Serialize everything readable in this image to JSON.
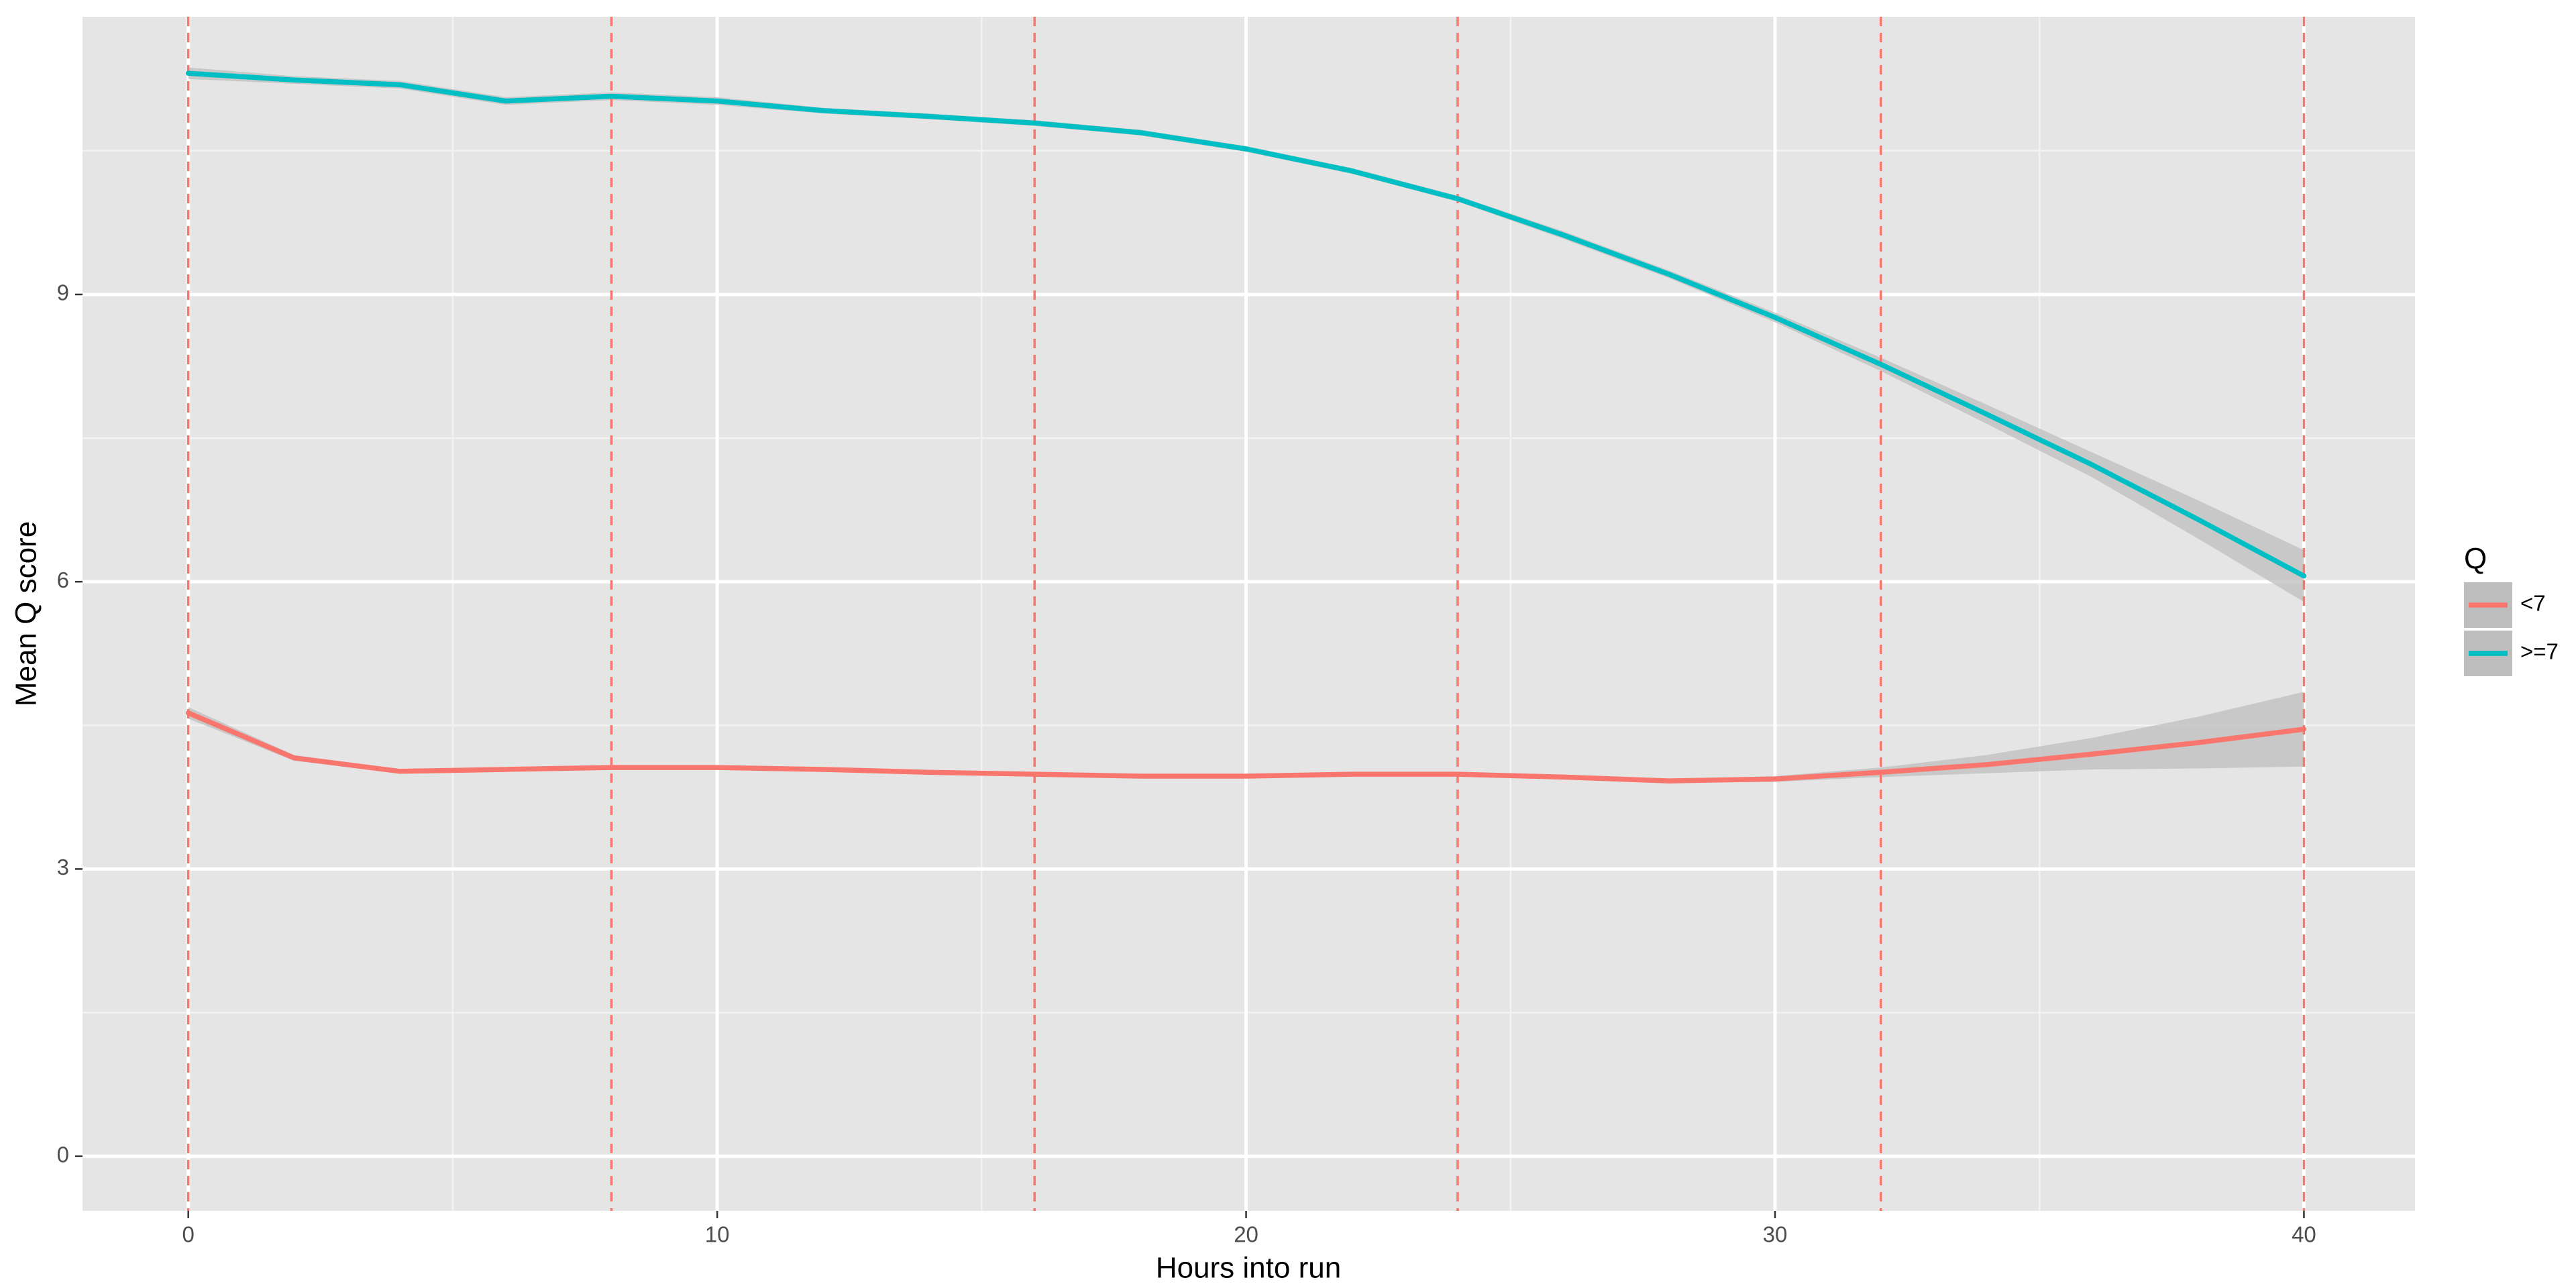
{
  "chart_data": {
    "type": "line",
    "x_label": "Hours into run",
    "y_label": "Mean Q score",
    "legend_title": "Q",
    "legend_position": "right",
    "grid": true,
    "xlim": [
      -2,
      42.1
    ],
    "ylim": [
      -0.57,
      11.9
    ],
    "xticks": [
      0,
      10,
      20,
      30,
      40
    ],
    "yticks": [
      0,
      3,
      6,
      9
    ],
    "vlines": [
      0,
      8,
      16,
      24,
      32,
      40
    ],
    "vline_color": "#F8766D",
    "ribbon_color": "#BDBDBD",
    "x": [
      0,
      2,
      4,
      6,
      8,
      10,
      12,
      14,
      16,
      18,
      20,
      22,
      24,
      26,
      28,
      30,
      32,
      34,
      36,
      38,
      40
    ],
    "series": [
      {
        "name": "<7",
        "color": "#F8766D",
        "values": [
          4.63,
          4.16,
          4.02,
          4.04,
          4.06,
          4.06,
          4.04,
          4.01,
          3.99,
          3.97,
          3.97,
          3.99,
          3.99,
          3.96,
          3.92,
          3.94,
          4.01,
          4.09,
          4.2,
          4.32,
          4.46
        ],
        "lower": [
          4.57,
          4.13,
          4.0,
          4.02,
          4.04,
          4.04,
          4.02,
          3.99,
          3.97,
          3.95,
          3.95,
          3.97,
          3.97,
          3.94,
          3.9,
          3.91,
          3.96,
          4.0,
          4.04,
          4.05,
          4.07
        ],
        "upper": [
          4.69,
          4.19,
          4.04,
          4.06,
          4.08,
          4.08,
          4.06,
          4.03,
          4.01,
          3.99,
          3.99,
          4.01,
          4.01,
          3.98,
          3.94,
          3.97,
          4.06,
          4.19,
          4.37,
          4.59,
          4.85
        ]
      },
      {
        "name": ">=7",
        "color": "#00BFC4",
        "values": [
          11.31,
          11.24,
          11.19,
          11.02,
          11.07,
          11.02,
          10.92,
          10.86,
          10.79,
          10.69,
          10.52,
          10.29,
          10.0,
          9.62,
          9.21,
          8.76,
          8.27,
          7.75,
          7.22,
          6.65,
          6.06
        ],
        "lower": [
          11.25,
          11.2,
          11.15,
          10.98,
          11.03,
          10.98,
          10.89,
          10.83,
          10.76,
          10.66,
          10.49,
          10.26,
          9.97,
          9.58,
          9.17,
          8.71,
          8.2,
          7.65,
          7.09,
          6.45,
          5.79
        ],
        "upper": [
          11.37,
          11.28,
          11.23,
          11.06,
          11.11,
          11.06,
          10.95,
          10.89,
          10.82,
          10.72,
          10.55,
          10.32,
          10.03,
          9.66,
          9.25,
          8.81,
          8.34,
          7.85,
          7.35,
          6.85,
          6.33
        ]
      }
    ]
  }
}
